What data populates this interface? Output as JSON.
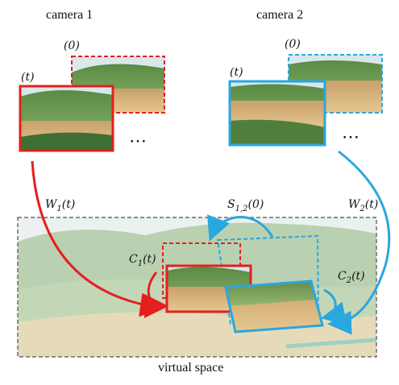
{
  "cameras": [
    {
      "title": "camera 1",
      "frame_t": "(t)",
      "frame_0": "(0)",
      "warp": "W",
      "warp_sub": "1",
      "warp_arg": "(t)",
      "color": "#e41f1f"
    },
    {
      "title": "camera 2",
      "frame_t": "(t)",
      "frame_0": "(0)",
      "warp": "W",
      "warp_sub": "2",
      "warp_arg": "(t)",
      "color": "#2aa7df"
    }
  ],
  "ellipsis": "⋯",
  "virtual": {
    "caption": "virtual space",
    "sync_label": "S",
    "sync_sub": "1,2",
    "sync_arg": "(0)",
    "c1_label": "C",
    "c1_sub": "1",
    "c1_arg": "(t)",
    "c2_label": "C",
    "c2_sub": "2",
    "c2_arg": "(t)"
  },
  "colors": {
    "red": "#e41f1f",
    "blue": "#2aa7df",
    "box_border": "#6b6b6b"
  }
}
